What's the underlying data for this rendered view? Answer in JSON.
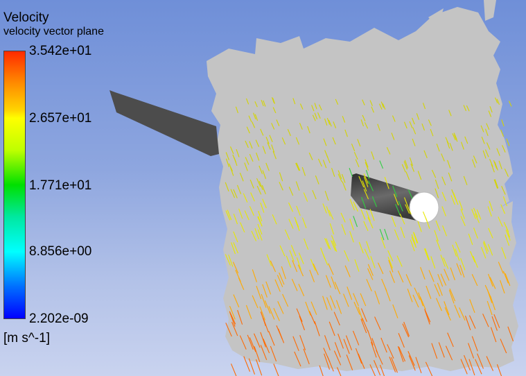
{
  "legend": {
    "title": "Velocity",
    "subtitle": "velocity vector plane",
    "unit": "[m s^-1]",
    "ticks": [
      "3.542e+01",
      "2.657e+01",
      "1.771e+01",
      "8.856e+00",
      "2.202e-09"
    ],
    "colors": [
      "#ff2a00",
      "#ffff00",
      "#00e000",
      "#00ffff",
      "#0000ff"
    ]
  },
  "scene": {
    "background_top": "#6f8fd8",
    "background_bottom": "#c9d3ef",
    "plane_color": "#c4c4c4",
    "geometry_color": "#4a4a4a"
  }
}
